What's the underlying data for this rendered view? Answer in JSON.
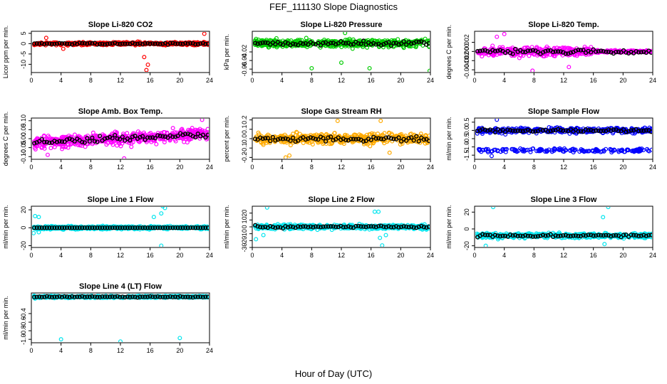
{
  "figure": {
    "title": "FEF_111130  Slope Diagnostics",
    "xlabel": "Hour of Day (UTC)"
  },
  "chart_data": [
    {
      "type": "scatter",
      "title": "Slope Li-820 CO2",
      "ylabel": "Licor ppm per min.",
      "xlim": [
        0,
        24
      ],
      "ylim": [
        -14,
        6
      ],
      "yticks": [
        -10,
        -5,
        0,
        5
      ],
      "ytick_labels": [
        "-10",
        "-5",
        "0",
        "5"
      ],
      "color": "#ff0000",
      "spread": 0.9,
      "seed": 11,
      "outliers": [
        [
          15.5,
          -12.8
        ],
        [
          15.7,
          -10.2
        ],
        [
          15.2,
          -6.5
        ],
        [
          23.3,
          4.8
        ],
        [
          2.0,
          2.8
        ],
        [
          4.3,
          -2.5
        ]
      ]
    },
    {
      "type": "scatter",
      "title": "Slope Li-820 Pressure",
      "ylabel": "kPa per min.",
      "xlim": [
        0,
        24
      ],
      "ylim": [
        -0.068,
        0.028
      ],
      "yticks": [
        -0.06,
        -0.04,
        -0.02
      ],
      "ytick_labels": [
        "-0.06",
        "-0.04",
        "-0.02"
      ],
      "color": "#00cc00",
      "center": 0.0,
      "spread": 0.011,
      "seed": 23,
      "outliers": [
        [
          8.0,
          -0.058
        ],
        [
          15.8,
          -0.058
        ],
        [
          23.9,
          -0.064
        ],
        [
          12.0,
          -0.045
        ],
        [
          12.5,
          0.024
        ]
      ]
    },
    {
      "type": "scatter",
      "title": "Slope Li-820 Temp.",
      "ylabel": "degrees C per min.",
      "xlim": [
        0,
        24
      ],
      "ylim": [
        -0.0046,
        0.0044
      ],
      "yticks": [
        -0.004,
        -0.002,
        0.0,
        0.002
      ],
      "ytick_labels": [
        "-0.004",
        "-0.002",
        "0.000",
        "0.002"
      ],
      "color": "#ff00ff",
      "spread": 0.0012,
      "seed": 37,
      "spread_fade": 16,
      "outliers": [
        [
          4.0,
          0.0038
        ],
        [
          7.8,
          -0.0042
        ],
        [
          3.0,
          0.0032
        ],
        [
          12.7,
          -0.0034
        ]
      ]
    },
    {
      "type": "scatter",
      "title": "Slope Amb. Box Temp.",
      "ylabel": "degrees C per min.",
      "xlim": [
        0,
        24
      ],
      "ylim": [
        -0.115,
        0.115
      ],
      "yticks": [
        -0.1,
        -0.05,
        0.0,
        0.05,
        0.1
      ],
      "ytick_labels": [
        "-0.10",
        "-0.05",
        "0.00",
        "0.05",
        "0.10"
      ],
      "color": "#ff00ff",
      "spread": 0.042,
      "seed": 41,
      "trend": 0.002,
      "outliers": [
        [
          12.5,
          -0.11
        ],
        [
          23.0,
          0.105
        ],
        [
          2.2,
          -0.09
        ]
      ]
    },
    {
      "type": "scatter",
      "title": "Slope Gas Stream RH",
      "ylabel": "percent per min.",
      "xlim": [
        0,
        24
      ],
      "ylim": [
        -0.22,
        0.22
      ],
      "yticks": [
        -0.2,
        -0.1,
        0.0,
        0.1,
        0.2
      ],
      "ytick_labels": [
        "-0.2",
        "-0.1",
        "0.0",
        "0.1",
        "0.2"
      ],
      "color": "#ffaa00",
      "spread": 0.07,
      "seed": 53,
      "outliers": [
        [
          4.5,
          -0.2
        ],
        [
          5.0,
          -0.18
        ],
        [
          11.5,
          0.19
        ],
        [
          17.3,
          0.19
        ],
        [
          18.5,
          -0.15
        ]
      ]
    },
    {
      "type": "scatter",
      "title": "Slope Sample Flow",
      "ylabel": "ml/min per min.",
      "xlim": [
        0,
        24
      ],
      "ylim": [
        -1.75,
        0.75
      ],
      "yticks": [
        -1.5,
        -1.0,
        -0.5,
        0.0,
        0.5
      ],
      "ytick_labels": [
        "-1.5",
        "-1.0",
        "-0.5",
        "0.0",
        "0.5"
      ],
      "color": "#0000ff",
      "spread": 0.22,
      "seed": 67,
      "band2": -1.2,
      "outliers": [
        [
          3.0,
          0.65
        ],
        [
          2.3,
          -1.55
        ]
      ]
    },
    {
      "type": "scatter",
      "title": "Slope Line 1 Flow",
      "ylabel": "ml/min per min.",
      "xlim": [
        0,
        24
      ],
      "ylim": [
        -22,
        24
      ],
      "yticks": [
        -20,
        0,
        20
      ],
      "ytick_labels": [
        "-20",
        "0",
        "20"
      ],
      "color": "#00e5ee",
      "spread": 2.2,
      "seed": 71,
      "black_flat": true,
      "outliers": [
        [
          0.5,
          13
        ],
        [
          1.0,
          12
        ],
        [
          16.5,
          12
        ],
        [
          17.5,
          16
        ],
        [
          17.7,
          24
        ],
        [
          18.0,
          22
        ],
        [
          17.5,
          -20
        ],
        [
          0.3,
          -6
        ],
        [
          1.0,
          -5
        ]
      ]
    },
    {
      "type": "scatter",
      "title": "Slope Line 2 Flow",
      "ylabel": "ml/min per min.",
      "xlim": [
        0,
        24
      ],
      "ylim": [
        -30,
        30
      ],
      "yticks": [
        -30,
        -20,
        -10,
        0,
        10,
        20
      ],
      "ytick_labels": [
        "-30",
        "-20",
        "-10",
        "0",
        "10",
        "20"
      ],
      "color": "#00e5ee",
      "spread": 4.0,
      "seed": 83,
      "outliers": [
        [
          2.0,
          28
        ],
        [
          1.5,
          -12
        ],
        [
          0.5,
          -18
        ],
        [
          16.5,
          22
        ],
        [
          17.0,
          22
        ],
        [
          17.5,
          -27
        ],
        [
          17.2,
          -16
        ],
        [
          18.0,
          -12
        ]
      ]
    },
    {
      "type": "scatter",
      "title": "Slope Line 3 Flow",
      "ylabel": "ml/min per min.",
      "xlim": [
        0,
        24
      ],
      "ylim": [
        -22,
        27
      ],
      "yticks": [
        -20,
        0,
        20
      ],
      "ytick_labels": [
        "-20",
        "0",
        "20"
      ],
      "color": "#00e5ee",
      "center": -8,
      "spread": 3.5,
      "seed": 97,
      "outliers": [
        [
          2.5,
          26
        ],
        [
          18.0,
          26
        ],
        [
          17.3,
          14
        ],
        [
          1.5,
          -20
        ],
        [
          17.5,
          -18
        ]
      ]
    },
    {
      "type": "scatter",
      "title": "Slope Line 4 (LT) Flow",
      "ylabel": "ml/min per min.",
      "xlim": [
        0,
        24
      ],
      "ylim": [
        -1.08,
        0.08
      ],
      "yticks": [
        -1.0,
        -0.8,
        -0.6,
        -0.4
      ],
      "ytick_labels": [
        "-1.0",
        "-0.8",
        "-0.6",
        "-0.4"
      ],
      "color": "#00e5ee",
      "center": -0.01,
      "spread": 0.03,
      "seed": 101,
      "outliers": [
        [
          4.0,
          -1.0
        ],
        [
          12.0,
          -1.05
        ],
        [
          20.0,
          -0.97
        ],
        [
          0.5,
          -0.05
        ]
      ]
    }
  ],
  "colors": {
    "black_points": "#000000",
    "axis": "#000000"
  }
}
